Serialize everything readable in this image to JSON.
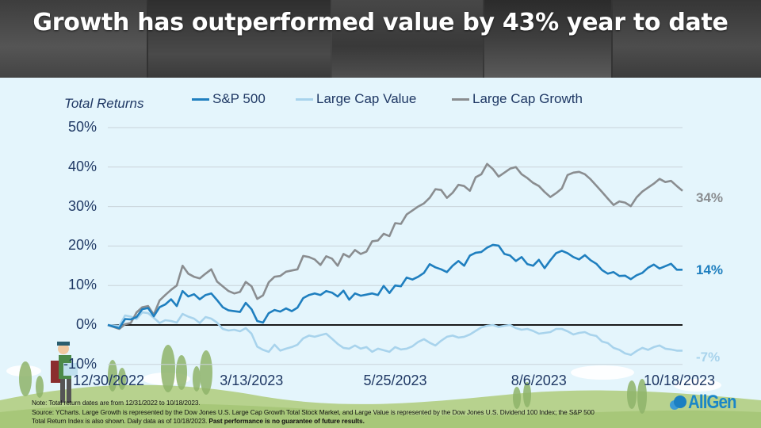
{
  "header": {
    "title": "Growth has outperformed value by 43% year to date"
  },
  "colors": {
    "sp500": "#1f7fbf",
    "value": "#a8d3ec",
    "growth": "#8a8d90",
    "axis_text": "#1f3864",
    "zero_line": "#1a1a1a",
    "grid": "#c9d3da"
  },
  "chart_data": {
    "type": "line",
    "title": "Growth has outperformed value by 43% year to date",
    "ylabel": "Total Returns",
    "xlabel": "",
    "ylim": [
      -10,
      50
    ],
    "yticks": [
      -10,
      0,
      10,
      20,
      30,
      40,
      50
    ],
    "ytick_labels": [
      "-10%",
      "0%",
      "10%",
      "20%",
      "30%",
      "40%",
      "50%"
    ],
    "xtick_labels": [
      "12/30/2022",
      "3/13/2023",
      "5/25/2023",
      "8/6/2023",
      "10/18/2023"
    ],
    "grid": true,
    "legend_position": "top",
    "x_progress": [
      0,
      0.02,
      0.03,
      0.04,
      0.05,
      0.06,
      0.07,
      0.08,
      0.09,
      0.1,
      0.11,
      0.12,
      0.13,
      0.14,
      0.15,
      0.16,
      0.17,
      0.18,
      0.19,
      0.2,
      0.21,
      0.22,
      0.23,
      0.24,
      0.25,
      0.26,
      0.27,
      0.28,
      0.29,
      0.3,
      0.31,
      0.32,
      0.33,
      0.34,
      0.35,
      0.36,
      0.37,
      0.38,
      0.39,
      0.4,
      0.41,
      0.42,
      0.43,
      0.44,
      0.45,
      0.46,
      0.47,
      0.48,
      0.49,
      0.5,
      0.51,
      0.52,
      0.53,
      0.54,
      0.55,
      0.56,
      0.57,
      0.58,
      0.59,
      0.6,
      0.61,
      0.62,
      0.63,
      0.64,
      0.65,
      0.66,
      0.67,
      0.68,
      0.69,
      0.7,
      0.71,
      0.72,
      0.73,
      0.74,
      0.75,
      0.76,
      0.77,
      0.78,
      0.79,
      0.8,
      0.81,
      0.82,
      0.83,
      0.84,
      0.85,
      0.86,
      0.87,
      0.88,
      0.89,
      0.9,
      0.91,
      0.92,
      0.93,
      0.94,
      0.95,
      0.96,
      0.97,
      0.98,
      0.99,
      1.0
    ],
    "series": [
      {
        "name": "S&P 500",
        "end_label": "14%",
        "values": [
          0,
          -0.8,
          1.5,
          1.4,
          2.0,
          4.0,
          4.3,
          2.2,
          4.5,
          5.2,
          6.5,
          4.8,
          8.6,
          7.2,
          7.8,
          6.5,
          7.6,
          8.0,
          6.3,
          4.5,
          3.7,
          3.5,
          3.3,
          5.6,
          4.0,
          1.0,
          0.6,
          3.0,
          3.8,
          3.4,
          4.2,
          3.5,
          4.4,
          6.8,
          7.6,
          8.0,
          7.6,
          8.6,
          8.2,
          7.2,
          8.7,
          6.4,
          8.0,
          7.4,
          7.7,
          8.0,
          7.6,
          9.9,
          8.1,
          10.0,
          9.8,
          12.0,
          11.5,
          12.2,
          13.2,
          15.4,
          14.6,
          14.1,
          13.4,
          15.0,
          16.2,
          15.0,
          17.6,
          18.3,
          18.5,
          19.6,
          20.3,
          20.1,
          18.0,
          17.6,
          16.2,
          17.2,
          15.4,
          15.0,
          16.5,
          14.4,
          16.4,
          18.2,
          18.8,
          18.2,
          17.2,
          16.6,
          17.7,
          16.4,
          15.5,
          13.9,
          13.0,
          13.4,
          12.4,
          12.5,
          11.6,
          12.6,
          13.2,
          14.5,
          15.3,
          14.3,
          14.9,
          15.5,
          14.0,
          14.0
        ]
      },
      {
        "name": "Large Cap Value",
        "end_label": "-7%",
        "values": [
          0,
          -0.2,
          2.4,
          2.1,
          1.5,
          3.2,
          3.0,
          1.8,
          0.5,
          1.2,
          1.0,
          0.6,
          2.8,
          2.1,
          1.6,
          0.5,
          2.0,
          1.6,
          0.6,
          -1.0,
          -1.4,
          -1.2,
          -1.6,
          -0.8,
          -2.2,
          -5.5,
          -6.3,
          -6.8,
          -5.0,
          -6.5,
          -6.0,
          -5.6,
          -5.0,
          -3.4,
          -2.7,
          -3.0,
          -2.6,
          -2.2,
          -3.5,
          -4.8,
          -5.8,
          -6.0,
          -5.2,
          -6.0,
          -5.6,
          -6.8,
          -6.0,
          -6.4,
          -6.8,
          -5.6,
          -6.2,
          -6.0,
          -5.4,
          -4.3,
          -3.6,
          -4.5,
          -5.2,
          -4.0,
          -3.0,
          -2.7,
          -3.2,
          -3.0,
          -2.4,
          -1.5,
          -0.6,
          -0.2,
          0.0,
          -0.5,
          -0.2,
          0.0,
          -0.8,
          -1.2,
          -1.0,
          -1.5,
          -2.2,
          -2.0,
          -1.8,
          -1.0,
          -1.0,
          -1.6,
          -2.4,
          -2.0,
          -1.8,
          -2.5,
          -2.8,
          -4.2,
          -4.6,
          -5.8,
          -6.3,
          -7.2,
          -7.6,
          -6.6,
          -5.8,
          -6.3,
          -5.6,
          -5.2,
          -6.0,
          -6.2,
          -6.5,
          -6.5
        ]
      },
      {
        "name": "Large Cap Growth",
        "end_label": "34%",
        "values": [
          0,
          -1.0,
          0.2,
          0.5,
          3.2,
          4.5,
          4.8,
          2.6,
          6.2,
          7.6,
          8.9,
          10.0,
          15.0,
          13.0,
          12.2,
          11.8,
          13.0,
          14.1,
          11.0,
          9.8,
          8.6,
          8.0,
          8.4,
          10.9,
          9.8,
          6.6,
          7.5,
          10.8,
          12.2,
          12.4,
          13.5,
          13.8,
          14.1,
          17.5,
          17.2,
          16.6,
          15.2,
          17.4,
          16.8,
          15.0,
          18.0,
          17.2,
          19.0,
          18.0,
          18.6,
          21.2,
          21.4,
          23.1,
          22.5,
          25.8,
          25.6,
          28.0,
          29.0,
          30.0,
          30.8,
          32.2,
          34.4,
          34.2,
          32.2,
          33.5,
          35.5,
          35.2,
          34.0,
          37.4,
          38.2,
          40.8,
          39.5,
          37.6,
          38.6,
          39.6,
          40.0,
          38.2,
          37.2,
          36.0,
          35.2,
          33.7,
          32.4,
          33.4,
          34.6,
          38.0,
          38.6,
          38.8,
          38.2,
          36.9,
          35.3,
          33.7,
          32.0,
          30.4,
          31.3,
          31.0,
          30.1,
          32.3,
          33.8,
          34.8,
          35.8,
          37.0,
          36.2,
          36.5,
          35.2,
          34.0
        ]
      }
    ]
  },
  "legend": [
    {
      "label": "S&P 500"
    },
    {
      "label": "Large Cap Value"
    },
    {
      "label": "Large Cap Growth"
    }
  ],
  "notes": {
    "line1": "Note: Total return dates are from 12/31/2022 to 10/18/2023.",
    "line2": "Source: YCharts. Large Growth is represented by the Dow Jones U.S. Large Cap Growth Total Stock Market, and Large Value is represented by the Dow Jones U.S. Dividend 100 Index; the S&P 500",
    "line3_regular": "Total Return Index is also shown. Daily data as of 10/18/2023. ",
    "line3_bold": "Past performance is no guarantee of future results."
  },
  "logo": {
    "text": "AllGen"
  }
}
